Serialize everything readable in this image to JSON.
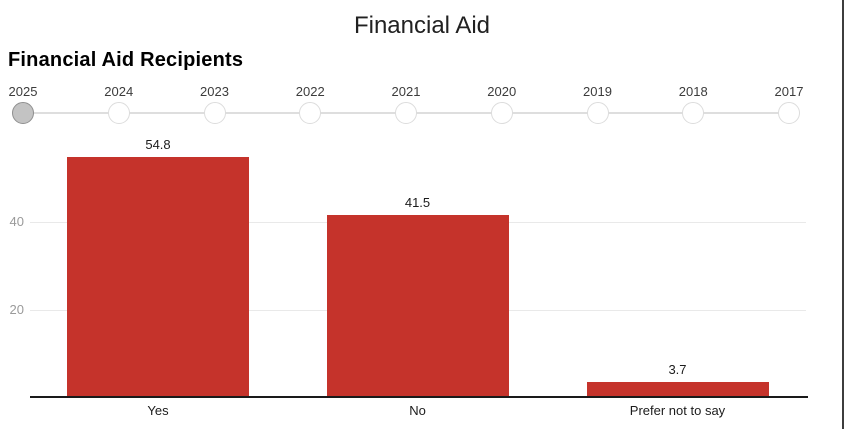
{
  "header": {
    "title": "Financial Aid"
  },
  "section": {
    "heading": "Financial Aid Recipients"
  },
  "year_slider": {
    "years": [
      "2025",
      "2024",
      "2023",
      "2022",
      "2021",
      "2020",
      "2019",
      "2018",
      "2017"
    ],
    "selected": "2025"
  },
  "chart_data": {
    "type": "bar",
    "title": "Financial Aid Recipients",
    "categories": [
      "Yes",
      "No",
      "Prefer not to say"
    ],
    "values": [
      54.8,
      41.5,
      3.7
    ],
    "value_labels": [
      "54.8",
      "41.5",
      "3.7"
    ],
    "xlabel": "",
    "ylabel": "",
    "ylim": [
      0,
      60
    ],
    "yticks": [
      20,
      40
    ],
    "grid": true,
    "legend": "none",
    "bar_color": "#c5332b"
  },
  "colors": {
    "bar": "#c5332b",
    "selected_stop_fill": "#c3c3c3",
    "selected_stop_border": "#8f8f8f",
    "stop_border": "#dcdcdc",
    "track": "#dedede",
    "gridline": "#e9e9e9",
    "axis": "#1a1a1a",
    "tick_text": "#9a9a9a",
    "window_border": "#3d3d3d"
  }
}
